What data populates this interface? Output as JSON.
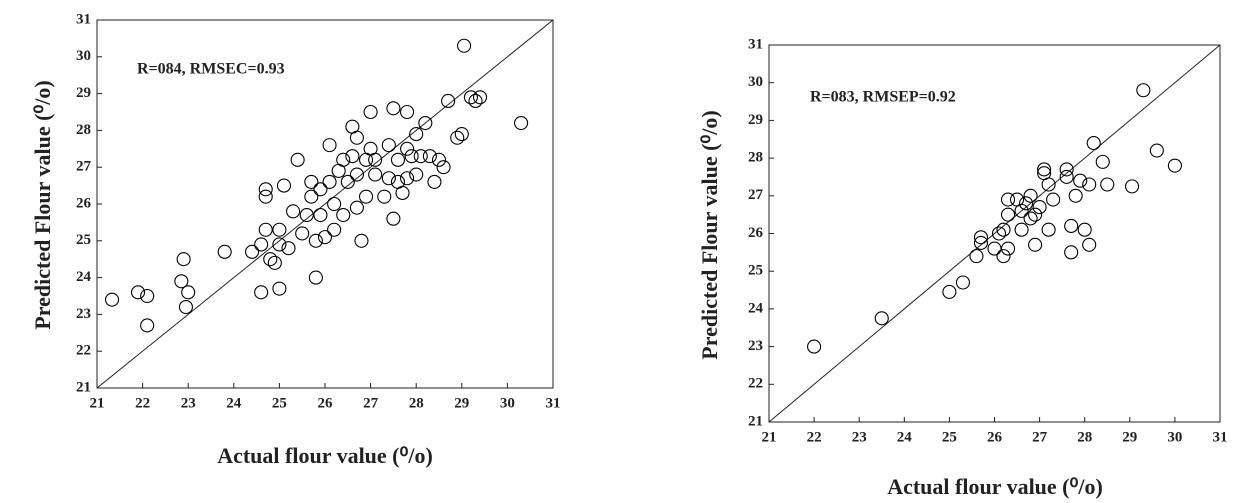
{
  "chart_data": [
    {
      "type": "scatter",
      "annotation": "R=084, RMSEC=0.93",
      "x_label": "Actual flour value (⁰/o)",
      "y_label": "Predicted Flour value (⁰/o)",
      "color": "#000000",
      "xlim": [
        21,
        31
      ],
      "ylim": [
        21,
        31
      ],
      "xticks": [
        21,
        22,
        23,
        24,
        25,
        26,
        27,
        28,
        29,
        30,
        31
      ],
      "yticks": [
        21,
        22,
        23,
        24,
        25,
        26,
        27,
        28,
        29,
        30,
        31
      ],
      "x": [
        21.33,
        21.9,
        22.1,
        22.1,
        22.85,
        22.9,
        22.95,
        23.0,
        23.8,
        24.4,
        24.6,
        24.6,
        24.7,
        24.7,
        24.7,
        24.8,
        24.9,
        25.0,
        25.0,
        25.1,
        25.0,
        25.2,
        25.3,
        25.4,
        25.5,
        25.6,
        25.7,
        25.7,
        25.8,
        25.8,
        25.9,
        25.9,
        26.0,
        26.1,
        26.1,
        26.2,
        26.2,
        26.3,
        26.4,
        26.4,
        26.5,
        26.6,
        26.6,
        26.7,
        26.7,
        26.7,
        26.8,
        26.9,
        26.9,
        27.0,
        27.0,
        27.1,
        27.1,
        27.3,
        27.4,
        27.4,
        27.5,
        27.5,
        27.6,
        27.6,
        27.7,
        27.8,
        27.8,
        27.8,
        27.9,
        28.0,
        28.0,
        28.1,
        28.2,
        28.3,
        28.4,
        28.5,
        28.6,
        28.7,
        28.9,
        29.0,
        29.05,
        29.2,
        29.3,
        29.4,
        30.3
      ],
      "y": [
        23.4,
        23.6,
        23.5,
        22.7,
        23.9,
        24.5,
        23.2,
        23.6,
        24.7,
        24.7,
        24.9,
        23.6,
        26.2,
        26.4,
        25.3,
        24.5,
        24.4,
        23.7,
        25.3,
        26.5,
        24.9,
        24.8,
        25.8,
        27.2,
        25.2,
        25.7,
        26.2,
        26.6,
        25.0,
        24.0,
        25.7,
        26.4,
        25.1,
        27.6,
        26.6,
        25.3,
        26.0,
        26.9,
        27.2,
        25.7,
        26.6,
        28.1,
        27.3,
        26.8,
        25.9,
        27.8,
        25.0,
        27.2,
        26.2,
        28.5,
        27.5,
        26.8,
        27.2,
        26.2,
        26.7,
        27.6,
        28.6,
        25.6,
        27.2,
        26.6,
        26.3,
        28.5,
        27.5,
        26.7,
        27.3,
        26.8,
        27.9,
        27.3,
        28.2,
        27.3,
        26.6,
        27.2,
        27.0,
        28.8,
        27.8,
        27.9,
        30.3,
        28.9,
        28.8,
        28.9,
        28.2
      ]
    },
    {
      "type": "scatter",
      "annotation": "R=083, RMSEP=0.92",
      "x_label": "Actual flour value (⁰/o)",
      "y_label": "Predicted Flour value (⁰/o)",
      "color": "#000000",
      "xlim": [
        21,
        31
      ],
      "ylim": [
        21,
        31
      ],
      "xticks": [
        21,
        22,
        23,
        24,
        25,
        26,
        27,
        28,
        29,
        30,
        31
      ],
      "yticks": [
        21,
        22,
        23,
        24,
        25,
        26,
        27,
        28,
        29,
        30,
        31
      ],
      "x": [
        22.0,
        23.5,
        25.0,
        25.3,
        25.6,
        25.7,
        25.7,
        26.0,
        26.1,
        26.2,
        26.2,
        26.3,
        26.3,
        26.3,
        26.5,
        26.6,
        26.6,
        26.7,
        26.8,
        26.8,
        26.9,
        26.9,
        27.0,
        27.1,
        27.1,
        27.2,
        27.2,
        27.3,
        27.6,
        27.6,
        27.7,
        27.7,
        27.8,
        27.9,
        28.0,
        28.1,
        28.1,
        28.2,
        28.4,
        28.5,
        29.05,
        29.3,
        29.6,
        30.0
      ],
      "y": [
        23.0,
        23.75,
        24.45,
        24.7,
        25.4,
        25.9,
        25.75,
        25.6,
        26.0,
        25.4,
        26.1,
        26.5,
        25.6,
        26.9,
        26.9,
        26.6,
        26.1,
        26.8,
        27.0,
        26.4,
        26.5,
        25.7,
        26.7,
        27.6,
        27.7,
        27.3,
        26.1,
        26.9,
        27.7,
        27.5,
        26.2,
        25.5,
        27.0,
        27.4,
        26.1,
        27.3,
        25.7,
        28.4,
        27.9,
        27.3,
        27.25,
        29.8,
        28.2,
        27.8
      ]
    }
  ]
}
